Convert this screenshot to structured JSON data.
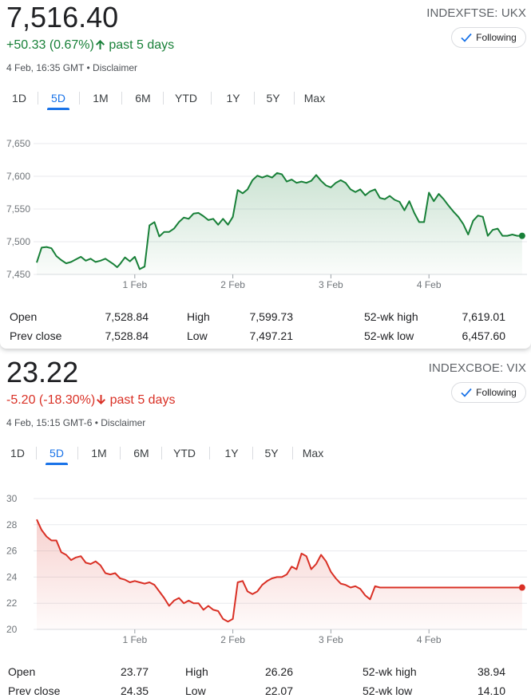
{
  "tabs": [
    "1D",
    "5D",
    "1M",
    "6M",
    "YTD",
    "1Y",
    "5Y",
    "Max"
  ],
  "active_tab": "5D",
  "icons": {
    "following_check": "check-icon",
    "change_up": "arrow-up-icon",
    "change_down": "arrow-down-icon"
  },
  "colors": {
    "up": "#188038",
    "down": "#d93025",
    "accent": "#1a73e8"
  },
  "stat_labels": {
    "open": "Open",
    "prev_close": "Prev close",
    "high": "High",
    "low": "Low",
    "wk52_high": "52-wk high",
    "wk52_low": "52-wk low"
  },
  "cards": [
    {
      "ticker": "INDEXFTSE: UKX",
      "price": "7,516.40",
      "change": "+50.33 (0.67%)",
      "change_period": "past 5 days",
      "direction": "up",
      "timestamp": "4 Feb, 16:35 GMT",
      "disclaimer": "Disclaimer",
      "follow_label": "Following",
      "stats": {
        "open": "7,528.84",
        "prev_close": "7,528.84",
        "high": "7,599.73",
        "low": "7,497.21",
        "wk52_high": "7,619.01",
        "wk52_low": "6,457.60"
      },
      "chart_data": {
        "type": "area",
        "ylim": [
          7450,
          7650
        ],
        "yticks": [
          7450,
          7500,
          7550,
          7600,
          7650
        ],
        "ytick_labels": [
          "7,450",
          "7,500",
          "7,550",
          "7,600",
          "7,650"
        ],
        "xlim": [
          0,
          5
        ],
        "xticks": [
          1,
          2,
          3,
          4
        ],
        "xtick_labels": [
          "1 Feb",
          "2 Feb",
          "3 Feb",
          "4 Feb"
        ],
        "grid": true,
        "color": "#188038",
        "x": [
          0.0,
          0.05,
          0.1,
          0.15,
          0.2,
          0.25,
          0.3,
          0.35,
          0.4,
          0.45,
          0.5,
          0.55,
          0.6,
          0.65,
          0.7,
          0.75,
          0.78,
          0.82,
          0.85,
          0.9,
          0.95,
          1.0,
          1.05,
          1.1,
          1.15,
          1.2,
          1.25,
          1.3,
          1.35,
          1.4,
          1.45,
          1.5,
          1.55,
          1.6,
          1.65,
          1.7,
          1.75,
          1.8,
          1.85,
          1.9,
          1.95,
          2.0,
          2.05,
          2.1,
          2.15,
          2.2,
          2.25,
          2.3,
          2.35,
          2.4,
          2.45,
          2.5,
          2.55,
          2.6,
          2.65,
          2.7,
          2.75,
          2.8,
          2.85,
          2.9,
          2.95,
          3.0,
          3.05,
          3.1,
          3.15,
          3.2,
          3.25,
          3.3,
          3.35,
          3.4,
          3.45,
          3.5,
          3.55,
          3.6,
          3.65,
          3.7,
          3.75,
          3.8,
          3.85,
          3.9,
          3.95,
          4.0,
          4.05,
          4.1,
          4.15,
          4.2,
          4.25,
          4.3,
          4.35,
          4.4,
          4.45,
          4.5,
          4.55,
          4.6,
          4.65,
          4.7,
          4.75,
          4.8,
          4.85,
          4.9,
          4.95
        ],
        "y": [
          7468,
          7491,
          7492,
          7490,
          7478,
          7472,
          7467,
          7469,
          7473,
          7477,
          7471,
          7474,
          7469,
          7471,
          7474,
          7469,
          7466,
          7461,
          7466,
          7476,
          7470,
          7477,
          7458,
          7462,
          7525,
          7530,
          7508,
          7515,
          7515,
          7520,
          7530,
          7537,
          7535,
          7543,
          7544,
          7539,
          7533,
          7535,
          7526,
          7535,
          7526,
          7538,
          7579,
          7574,
          7580,
          7594,
          7601,
          7598,
          7601,
          7598,
          7605,
          7603,
          7592,
          7595,
          7590,
          7592,
          7590,
          7593,
          7602,
          7593,
          7586,
          7583,
          7590,
          7594,
          7590,
          7580,
          7576,
          7580,
          7571,
          7577,
          7580,
          7567,
          7565,
          7570,
          7564,
          7561,
          7548,
          7562,
          7544,
          7530,
          7530,
          7575,
          7562,
          7573,
          7565,
          7555,
          7546,
          7538,
          7527,
          7511,
          7532,
          7540,
          7538,
          7509,
          7518,
          7520,
          7509,
          7509,
          7511,
          7509,
          7509
        ]
      }
    },
    {
      "ticker": "INDEXCBOE: VIX",
      "price": "23.22",
      "change": "-5.20 (-18.30%)",
      "change_period": "past 5 days",
      "direction": "down",
      "timestamp": "4 Feb, 15:15 GMT-6",
      "disclaimer": "Disclaimer",
      "follow_label": "Following",
      "stats": {
        "open": "23.77",
        "prev_close": "24.35",
        "high": "26.26",
        "low": "22.07",
        "wk52_high": "38.94",
        "wk52_low": "14.10"
      },
      "chart_data": {
        "type": "area",
        "ylim": [
          20,
          30
        ],
        "yticks": [
          20,
          22,
          24,
          26,
          28,
          30
        ],
        "ytick_labels": [
          "20",
          "22",
          "24",
          "26",
          "28",
          "30"
        ],
        "xlim": [
          0,
          5
        ],
        "xticks": [
          1,
          2,
          3,
          4
        ],
        "xtick_labels": [
          "1 Feb",
          "2 Feb",
          "3 Feb",
          "4 Feb"
        ],
        "grid": true,
        "color": "#d93025",
        "x": [
          0.0,
          0.05,
          0.1,
          0.15,
          0.2,
          0.25,
          0.3,
          0.35,
          0.4,
          0.45,
          0.5,
          0.55,
          0.6,
          0.65,
          0.7,
          0.75,
          0.8,
          0.85,
          0.9,
          0.95,
          1.0,
          1.05,
          1.1,
          1.15,
          1.2,
          1.25,
          1.3,
          1.35,
          1.4,
          1.45,
          1.5,
          1.55,
          1.6,
          1.65,
          1.7,
          1.75,
          1.8,
          1.85,
          1.9,
          1.95,
          2.0,
          2.05,
          2.1,
          2.15,
          2.2,
          2.25,
          2.3,
          2.35,
          2.4,
          2.45,
          2.5,
          2.55,
          2.6,
          2.65,
          2.7,
          2.75,
          2.8,
          2.85,
          2.9,
          2.95,
          3.0,
          3.05,
          3.1,
          3.15,
          3.2,
          3.25,
          3.3,
          3.35,
          3.4,
          3.45,
          3.5,
          3.55,
          3.6,
          3.65,
          3.7,
          3.75,
          3.8,
          3.85,
          3.9,
          3.95,
          4.0,
          4.05,
          4.1,
          4.15,
          4.2,
          4.25,
          4.3,
          4.35,
          4.4,
          4.45,
          4.5,
          4.55,
          4.6,
          4.65,
          4.7,
          4.75,
          4.8,
          4.85,
          4.9,
          4.95
        ],
        "y": [
          28.4,
          27.6,
          27.1,
          26.8,
          26.8,
          25.9,
          25.7,
          25.3,
          25.5,
          25.6,
          25.1,
          25.0,
          25.2,
          24.9,
          24.3,
          24.2,
          24.3,
          23.9,
          23.8,
          23.6,
          23.7,
          23.6,
          23.5,
          23.6,
          23.4,
          22.9,
          22.4,
          21.8,
          22.2,
          22.4,
          22.0,
          22.2,
          22.0,
          22.0,
          21.5,
          21.8,
          21.5,
          21.4,
          20.8,
          20.6,
          20.8,
          23.6,
          23.7,
          22.9,
          22.7,
          22.9,
          23.4,
          23.7,
          23.9,
          24.0,
          24.0,
          24.2,
          24.8,
          24.6,
          25.8,
          25.6,
          24.6,
          25.0,
          25.7,
          25.2,
          24.4,
          23.9,
          23.5,
          23.4,
          23.2,
          23.3,
          23.1,
          22.6,
          22.3,
          23.3,
          23.2,
          23.2,
          23.2,
          23.2,
          23.2,
          23.2,
          23.2,
          23.2,
          23.2,
          23.2,
          23.2,
          23.2,
          23.2,
          23.2,
          23.2,
          23.2,
          23.2,
          23.2,
          23.2,
          23.2,
          23.2,
          23.2,
          23.2,
          23.2,
          23.2,
          23.2,
          23.2,
          23.2,
          23.2,
          23.2
        ]
      }
    }
  ]
}
